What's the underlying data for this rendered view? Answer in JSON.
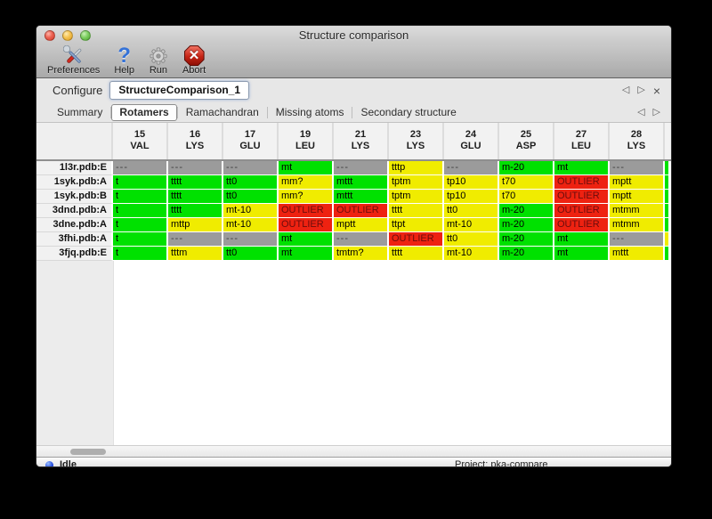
{
  "window": {
    "title": "Structure comparison"
  },
  "toolbar": {
    "items": [
      {
        "label": "Preferences"
      },
      {
        "label": "Help"
      },
      {
        "label": "Run"
      },
      {
        "label": "Abort"
      }
    ]
  },
  "configure": {
    "label": "Configure",
    "value": "StructureComparison_1"
  },
  "tabs": {
    "items": [
      "Summary",
      "Rotamers",
      "Ramachandran",
      "Missing atoms",
      "Secondary structure"
    ],
    "selected": "Rotamers"
  },
  "icons": {
    "help": "?",
    "abort_x": "✕",
    "prev": "◁",
    "next": "▷",
    "close": "×"
  },
  "colors": {
    "green": "#00e100",
    "yellow": "#f0ec00",
    "red": "#ee2211",
    "gray": "#9b9b9b"
  },
  "cell_text_colors": {
    "red": "#6b0d0d",
    "gray": "#3e3e3e"
  },
  "table": {
    "columns": [
      {
        "num": "15",
        "res": "VAL"
      },
      {
        "num": "16",
        "res": "LYS"
      },
      {
        "num": "17",
        "res": "GLU"
      },
      {
        "num": "19",
        "res": "LEU"
      },
      {
        "num": "21",
        "res": "LYS"
      },
      {
        "num": "23",
        "res": "LYS"
      },
      {
        "num": "24",
        "res": "GLU"
      },
      {
        "num": "25",
        "res": "ASP"
      },
      {
        "num": "27",
        "res": "LEU"
      },
      {
        "num": "28",
        "res": "LYS"
      }
    ],
    "rows": [
      {
        "label": "1l3r.pdb:E",
        "cells": [
          [
            "---",
            "gray"
          ],
          [
            "---",
            "gray"
          ],
          [
            "---",
            "gray"
          ],
          [
            "mt",
            "green"
          ],
          [
            "---",
            "gray"
          ],
          [
            "tttp",
            "yellow"
          ],
          [
            "---",
            "gray"
          ],
          [
            "m-20",
            "green"
          ],
          [
            "mt",
            "green"
          ],
          [
            "---",
            "gray"
          ]
        ],
        "partial": "green"
      },
      {
        "label": "1syk.pdb:A",
        "cells": [
          [
            "t",
            "green"
          ],
          [
            "tttt",
            "green"
          ],
          [
            "tt0",
            "green"
          ],
          [
            "mm?",
            "yellow"
          ],
          [
            "mttt",
            "green"
          ],
          [
            "tptm",
            "yellow"
          ],
          [
            "tp10",
            "yellow"
          ],
          [
            "t70",
            "yellow"
          ],
          [
            "OUTLIER",
            "red"
          ],
          [
            "mptt",
            "yellow"
          ]
        ],
        "partial": "green"
      },
      {
        "label": "1syk.pdb:B",
        "cells": [
          [
            "t",
            "green"
          ],
          [
            "tttt",
            "green"
          ],
          [
            "tt0",
            "green"
          ],
          [
            "mm?",
            "yellow"
          ],
          [
            "mttt",
            "green"
          ],
          [
            "tptm",
            "yellow"
          ],
          [
            "tp10",
            "yellow"
          ],
          [
            "t70",
            "yellow"
          ],
          [
            "OUTLIER",
            "red"
          ],
          [
            "mptt",
            "yellow"
          ]
        ],
        "partial": "green"
      },
      {
        "label": "3dnd.pdb:A",
        "cells": [
          [
            "t",
            "green"
          ],
          [
            "tttt",
            "green"
          ],
          [
            "mt-10",
            "yellow"
          ],
          [
            "OUTLIER",
            "red"
          ],
          [
            "OUTLIER",
            "red"
          ],
          [
            "tttt",
            "yellow"
          ],
          [
            "tt0",
            "yellow"
          ],
          [
            "m-20",
            "green"
          ],
          [
            "OUTLIER",
            "red"
          ],
          [
            "mtmm",
            "yellow"
          ]
        ],
        "partial": "green"
      },
      {
        "label": "3dne.pdb:A",
        "cells": [
          [
            "t",
            "green"
          ],
          [
            "mttp",
            "yellow"
          ],
          [
            "mt-10",
            "yellow"
          ],
          [
            "OUTLIER",
            "red"
          ],
          [
            "mptt",
            "yellow"
          ],
          [
            "ttpt",
            "yellow"
          ],
          [
            "mt-10",
            "yellow"
          ],
          [
            "m-20",
            "green"
          ],
          [
            "OUTLIER",
            "red"
          ],
          [
            "mtmm",
            "yellow"
          ]
        ],
        "partial": "green"
      },
      {
        "label": "3fhi.pdb:A",
        "cells": [
          [
            "t",
            "green"
          ],
          [
            "---",
            "gray"
          ],
          [
            "---",
            "gray"
          ],
          [
            "mt",
            "green"
          ],
          [
            "---",
            "gray"
          ],
          [
            "OUTLIER",
            "red"
          ],
          [
            "tt0",
            "yellow"
          ],
          [
            "m-20",
            "green"
          ],
          [
            "mt",
            "green"
          ],
          [
            "---",
            "gray"
          ]
        ],
        "partial": "yellow"
      },
      {
        "label": "3fjq.pdb:E",
        "cells": [
          [
            "t",
            "green"
          ],
          [
            "tttm",
            "yellow"
          ],
          [
            "tt0",
            "green"
          ],
          [
            "mt",
            "green"
          ],
          [
            "tmtm?",
            "yellow"
          ],
          [
            "tttt",
            "yellow"
          ],
          [
            "mt-10",
            "yellow"
          ],
          [
            "m-20",
            "green"
          ],
          [
            "mt",
            "green"
          ],
          [
            "mttt",
            "yellow"
          ]
        ],
        "partial": "green"
      }
    ]
  },
  "status": {
    "state": "Idle",
    "project": "Project: pka-compare"
  }
}
